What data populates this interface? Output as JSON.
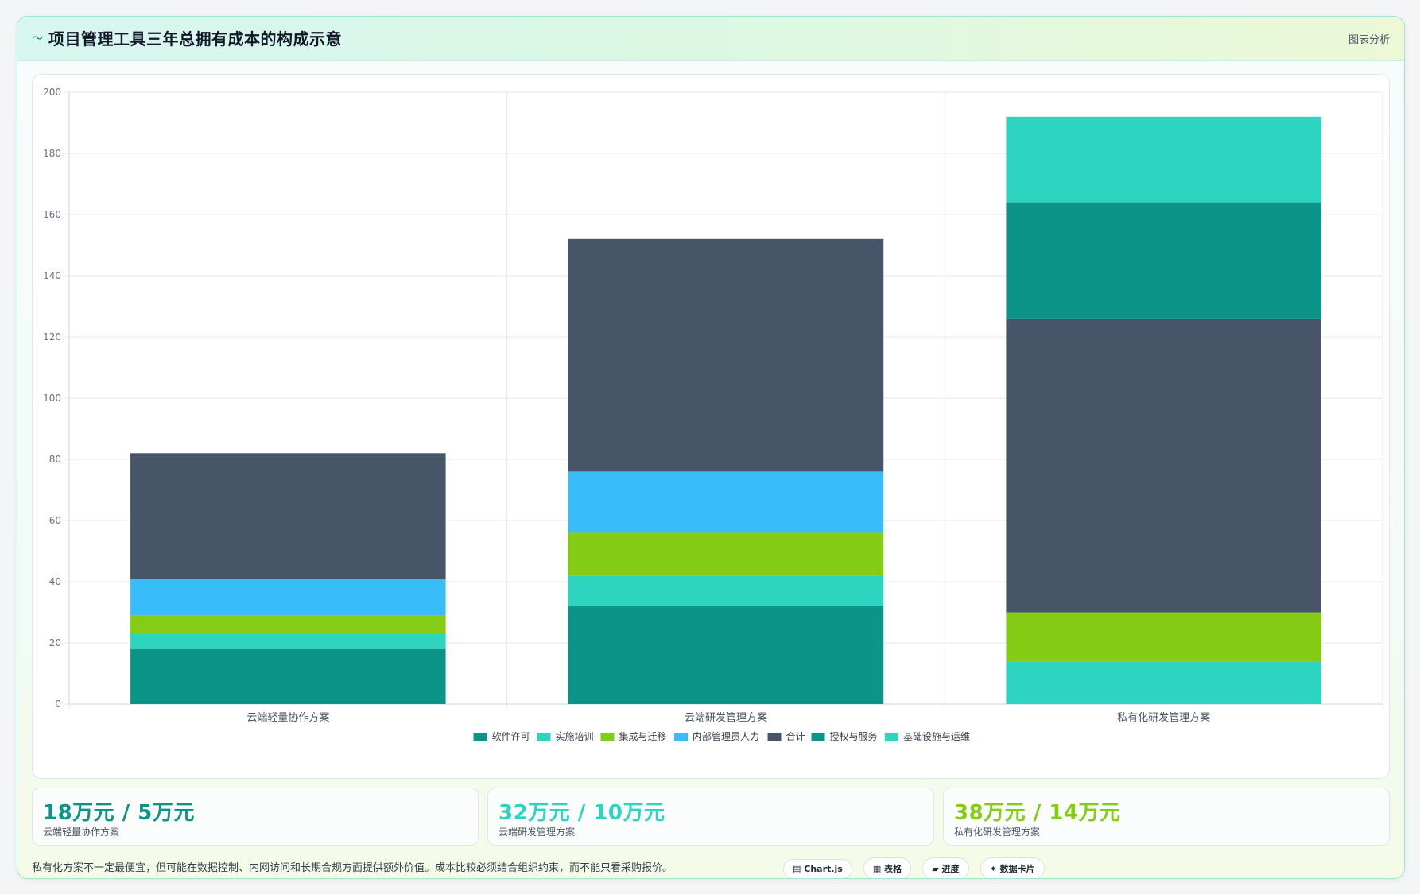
{
  "header": {
    "glyph": "〜",
    "title": "项目管理工具三年总拥有成本的构成示意",
    "action_label": "图表分析"
  },
  "chart_data": {
    "type": "bar",
    "stacked": true,
    "title": "",
    "xlabel": "",
    "ylabel": "",
    "categories": [
      "云端轻量协作方案",
      "云端研发管理方案",
      "私有化研发管理方案"
    ],
    "ylim": [
      0,
      200
    ],
    "yticks": [
      0,
      20,
      40,
      60,
      80,
      100,
      120,
      140,
      160,
      180,
      200
    ],
    "grid": true,
    "legend_position": "bottom",
    "series": [
      {
        "name": "软件许可",
        "color": "#0d9488",
        "values": [
          18,
          32,
          0
        ]
      },
      {
        "name": "实施培训",
        "color": "#2dd4bf",
        "values": [
          5,
          10,
          14
        ]
      },
      {
        "name": "集成与迁移",
        "color": "#84cc16",
        "values": [
          6,
          14,
          16
        ]
      },
      {
        "name": "内部管理员人力",
        "color": "#38bdf8",
        "values": [
          12,
          20,
          0
        ]
      },
      {
        "name": "合计",
        "color": "#475569",
        "values": [
          41,
          76,
          96
        ]
      },
      {
        "name": "授权与服务",
        "color": "#0d9488",
        "values": [
          0,
          0,
          38
        ]
      },
      {
        "name": "基础设施与运维",
        "color": "#2dd4bf",
        "values": [
          0,
          0,
          28
        ]
      }
    ]
  },
  "stats": [
    {
      "value": "18万元 / 5万元",
      "label": "云端轻量协作方案",
      "color": "#0d9488"
    },
    {
      "value": "32万元 / 10万元",
      "label": "云端研发管理方案",
      "color": "#2dd4bf"
    },
    {
      "value": "38万元 / 14万元",
      "label": "私有化研发管理方案",
      "color": "#84cc16"
    }
  ],
  "note": "私有化方案不一定最便宜，但可能在数据控制、内网访问和长期合规方面提供额外价值。成本比较必须结合组织约束，而不能只看采购报价。",
  "chips": [
    {
      "icon": "▤",
      "label": "Chart.js"
    },
    {
      "icon": "▦",
      "label": "表格"
    },
    {
      "icon": "▰",
      "label": "进度"
    },
    {
      "icon": "✦",
      "label": "数据卡片"
    }
  ]
}
